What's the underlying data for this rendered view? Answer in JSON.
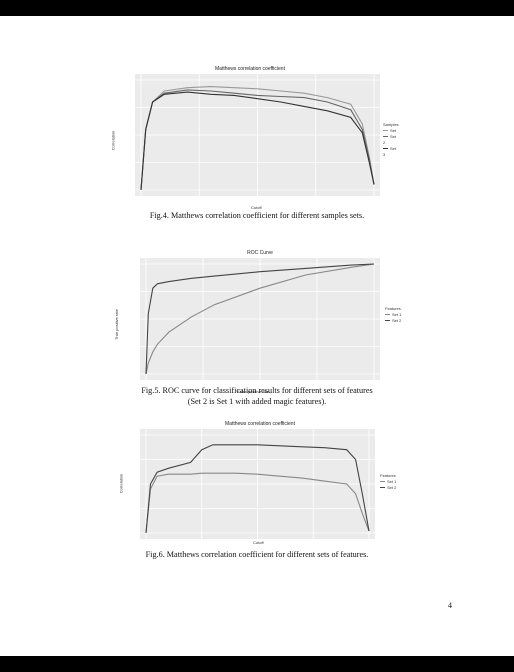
{
  "figures": [
    {
      "title": "Matthews correlation coefficient",
      "xlabel": "Cutoff",
      "ylabel": "Correlation",
      "caption": "Fig.4. Matthews correlation coefficient for different samples sets.",
      "legend_title": "Samples",
      "legend_items": [
        "Set",
        "Set 2",
        "Set 3"
      ]
    },
    {
      "title": "ROC Curve",
      "xlabel": "False positive rate",
      "ylabel": "True positive rate",
      "caption_line1": "Fig.5.  ROC curve for classification results for different sets of features",
      "caption_line2": "(Set 2  is Set 1 with added magic features).",
      "legend_title": "Features",
      "legend_items": [
        "Set 1",
        "Set 2"
      ]
    },
    {
      "title": "Matthews correlation coefficient",
      "xlabel": "Cutoff",
      "ylabel": "Correlation",
      "caption": "Fig.6. Matthews correlation coefficient for different sets of features.",
      "legend_title": "Features",
      "legend_items": [
        "Set 1",
        "Set 2"
      ]
    }
  ],
  "page_number": "4",
  "chart_data": [
    {
      "type": "line",
      "title": "Matthews correlation coefficient",
      "xlabel": "Cutoff",
      "ylabel": "Correlation",
      "x": [
        0.0,
        0.02,
        0.05,
        0.1,
        0.2,
        0.3,
        0.4,
        0.5,
        0.6,
        0.7,
        0.8,
        0.9,
        0.95,
        0.98,
        1.0
      ],
      "series": [
        {
          "name": "Set",
          "values": [
            0.0,
            0.55,
            0.8,
            0.9,
            0.93,
            0.94,
            0.93,
            0.92,
            0.9,
            0.88,
            0.84,
            0.78,
            0.6,
            0.3,
            0.05
          ]
        },
        {
          "name": "Set 2",
          "values": [
            0.0,
            0.55,
            0.8,
            0.88,
            0.91,
            0.9,
            0.88,
            0.86,
            0.85,
            0.84,
            0.8,
            0.73,
            0.55,
            0.28,
            0.05
          ]
        },
        {
          "name": "Set 3",
          "values": [
            0.0,
            0.55,
            0.8,
            0.87,
            0.89,
            0.87,
            0.86,
            0.83,
            0.8,
            0.76,
            0.72,
            0.66,
            0.52,
            0.25,
            0.05
          ]
        }
      ],
      "xlim": [
        0,
        1
      ],
      "ylim": [
        0,
        1
      ],
      "xticks": [
        0.0,
        0.25,
        0.5,
        0.75,
        1.0
      ],
      "grid": true,
      "legend": "right"
    },
    {
      "type": "line",
      "title": "ROC Curve",
      "xlabel": "False positive rate",
      "ylabel": "True positive rate",
      "x": [
        0.0,
        0.01,
        0.03,
        0.05,
        0.1,
        0.2,
        0.3,
        0.5,
        0.7,
        0.9,
        1.0
      ],
      "series": [
        {
          "name": "Set 1",
          "values": [
            0.0,
            0.1,
            0.2,
            0.27,
            0.38,
            0.52,
            0.63,
            0.78,
            0.9,
            0.97,
            1.0
          ]
        },
        {
          "name": "Set 2",
          "values": [
            0.0,
            0.55,
            0.78,
            0.82,
            0.84,
            0.87,
            0.89,
            0.93,
            0.96,
            0.99,
            1.0
          ]
        }
      ],
      "xlim": [
        0,
        1
      ],
      "ylim": [
        0,
        1
      ],
      "xticks": [
        0.0,
        0.25,
        0.5,
        0.75,
        1.0
      ],
      "grid": true,
      "legend": "right"
    },
    {
      "type": "line",
      "title": "Matthews correlation coefficient",
      "xlabel": "Cutoff",
      "ylabel": "Correlation",
      "x": [
        0.0,
        0.02,
        0.05,
        0.1,
        0.2,
        0.25,
        0.3,
        0.4,
        0.5,
        0.6,
        0.7,
        0.8,
        0.9,
        0.94,
        0.97,
        1.0
      ],
      "series": [
        {
          "name": "Set 1",
          "values": [
            0.0,
            0.45,
            0.58,
            0.6,
            0.6,
            0.61,
            0.61,
            0.61,
            0.6,
            0.58,
            0.56,
            0.53,
            0.5,
            0.4,
            0.2,
            0.02
          ]
        },
        {
          "name": "Set 2",
          "values": [
            0.0,
            0.5,
            0.62,
            0.66,
            0.72,
            0.85,
            0.9,
            0.9,
            0.9,
            0.89,
            0.88,
            0.87,
            0.85,
            0.75,
            0.4,
            0.02
          ]
        }
      ],
      "xlim": [
        0,
        1
      ],
      "ylim": [
        0,
        1
      ],
      "xticks": [
        0.0,
        0.25,
        0.5,
        0.75,
        1.0
      ],
      "grid": true,
      "legend": "right"
    }
  ]
}
